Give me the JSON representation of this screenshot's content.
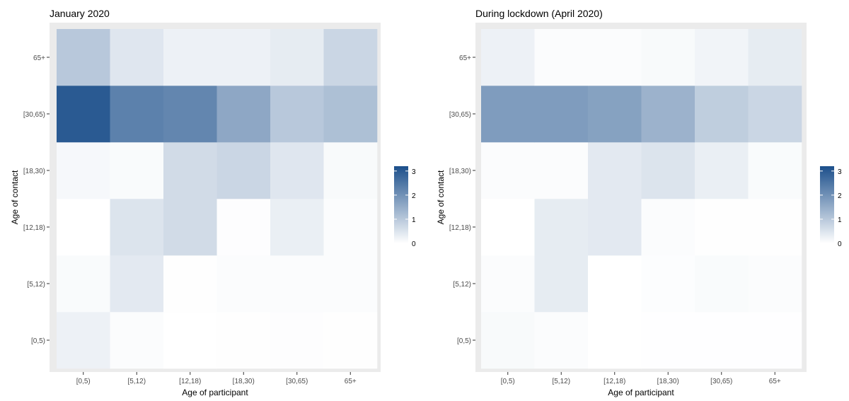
{
  "chart_data": [
    {
      "type": "heatmap",
      "title": "January 2020",
      "xlabel": "Age of participant",
      "ylabel": "Age of contact",
      "x_categories": [
        "[0,5)",
        "[5,12)",
        "[12,18)",
        "[18,30)",
        "[30,65)",
        "65+"
      ],
      "y_categories": [
        "[0,5)",
        "[5,12)",
        "[12,18)",
        "[18,30)",
        "[30,65)",
        "65+"
      ],
      "values": [
        [
          0.25,
          0.06,
          0.0,
          0.02,
          0.03,
          0.02
        ],
        [
          0.08,
          0.4,
          0.02,
          0.05,
          0.05,
          0.05
        ],
        [
          0.0,
          0.5,
          0.65,
          0.03,
          0.3,
          0.06
        ],
        [
          0.12,
          0.08,
          0.65,
          0.75,
          0.45,
          0.1
        ],
        [
          3.0,
          2.3,
          2.2,
          1.6,
          1.0,
          1.15
        ],
        [
          1.0,
          0.45,
          0.25,
          0.25,
          0.35,
          0.75
        ]
      ],
      "legend": {
        "position": "right",
        "breaks": [
          "3",
          "2",
          "1",
          "0"
        ],
        "min": 0,
        "max": 3.2,
        "low_color": "#ffffff",
        "high_color": "#1c4f8b"
      },
      "background": "#ebebeb"
    },
    {
      "type": "heatmap",
      "title": "During lockdown (April 2020)",
      "xlabel": "Age of participant",
      "ylabel": "Age of contact",
      "x_categories": [
        "[0,5)",
        "[5,12)",
        "[12,18)",
        "[18,30)",
        "[30,65)",
        "65+"
      ],
      "y_categories": [
        "[0,5)",
        "[5,12)",
        "[12,18)",
        "[18,30)",
        "[30,65)",
        "65+"
      ],
      "values": [
        [
          0.1,
          0.06,
          0.0,
          0.01,
          0.01,
          0.01
        ],
        [
          0.05,
          0.35,
          0.0,
          0.04,
          0.08,
          0.05
        ],
        [
          0.0,
          0.35,
          0.4,
          0.05,
          0.02,
          0.02
        ],
        [
          0.05,
          0.05,
          0.4,
          0.5,
          0.3,
          0.08
        ],
        [
          1.8,
          1.8,
          1.7,
          1.4,
          0.9,
          0.75
        ],
        [
          0.25,
          0.05,
          0.05,
          0.1,
          0.2,
          0.35
        ]
      ],
      "legend": {
        "position": "right",
        "breaks": [
          "3",
          "2",
          "1",
          "0"
        ],
        "min": 0,
        "max": 3.2,
        "low_color": "#ffffff",
        "high_color": "#1c4f8b"
      },
      "background": "#ebebeb"
    }
  ]
}
